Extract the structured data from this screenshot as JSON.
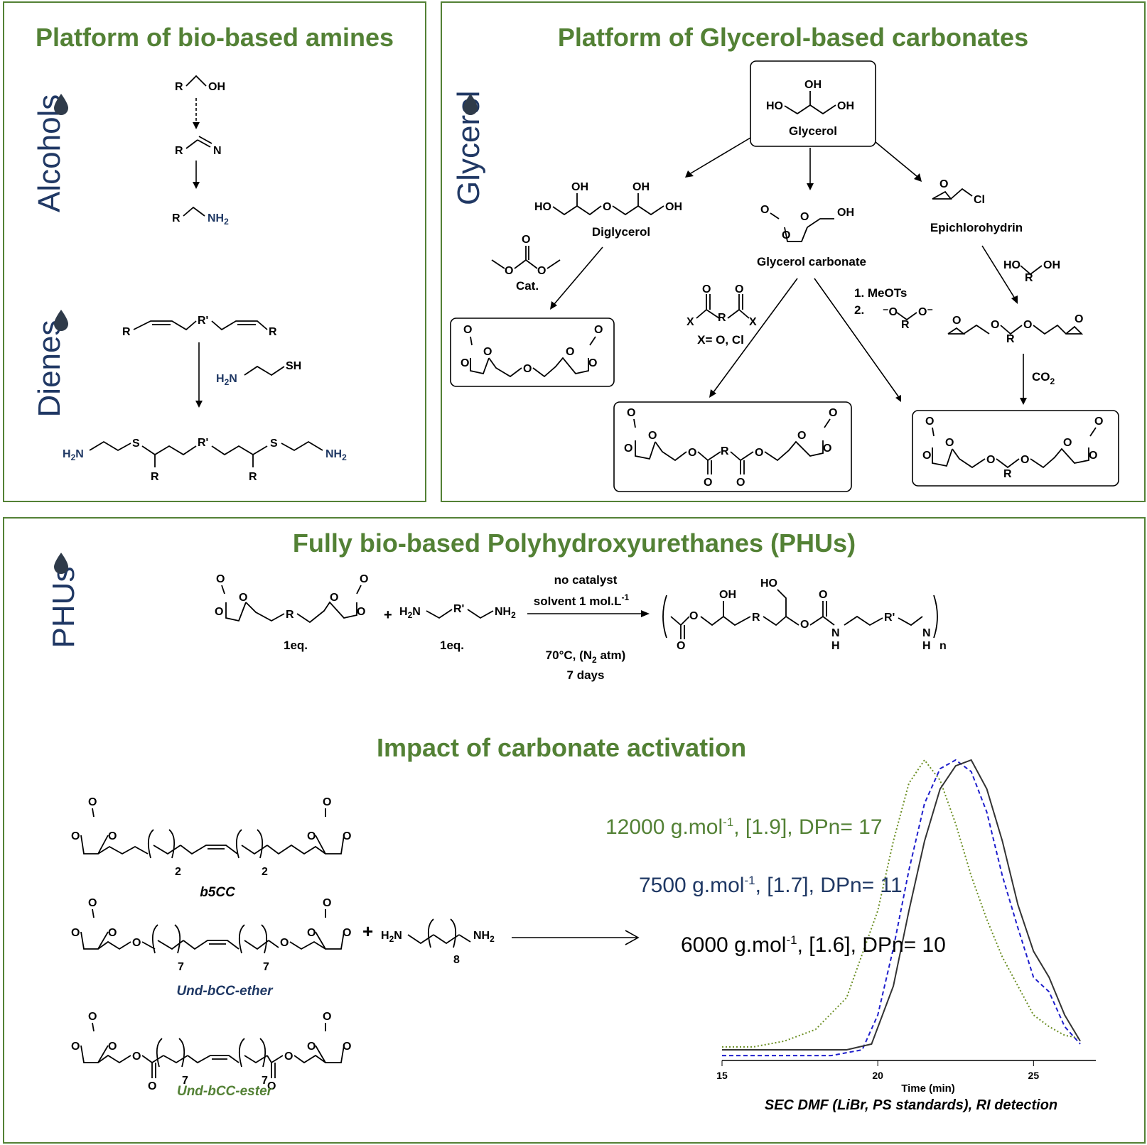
{
  "panels": {
    "amines": {
      "title": "Platform of bio-based amines",
      "side_alcohols": "Alcohols",
      "side_dienes": "Dienes"
    },
    "glycerol": {
      "title": "Platform of Glycerol-based carbonates",
      "side": "Glycerol"
    },
    "phus": {
      "title": "Fully bio-based Polyhydroxyurethanes (PHUs)",
      "side": "PHUs",
      "subtitle": "Impact of carbonate activation"
    }
  },
  "labels": {
    "glycerol": "Glycerol",
    "diglycerol": "Diglycerol",
    "glycerol_carbonate": "Glycerol carbonate",
    "epichlorohydrin": "Epichlorohydrin",
    "cat": "Cat.",
    "x_eq": "X= O, Cl",
    "meots_1": "1. MeOTs",
    "meots_2": "2.",
    "co2": "CO",
    "co2_sub": "2",
    "eq1": "1eq.",
    "eq2": "1eq.",
    "cond_1": "no catalyst",
    "cond_2": "solvent 1 mol.L",
    "cond_2_sup": "-1",
    "cond_3": "70°C, (N",
    "cond_3_sub": "2",
    "cond_3_end": " atm)",
    "cond_4": "7 days",
    "plus": "+",
    "n": "n"
  },
  "compounds": {
    "b5cc": "b5CC",
    "und_ether": "Und-bCC-ether",
    "und_ester": "Und-bCC-ester",
    "diamine_index": "8"
  },
  "results": [
    {
      "value": "12000 g.mol",
      "sup": "-1",
      "rest": ", [1.9], DPn= 17",
      "color": "#538135"
    },
    {
      "value": "7500 g.mol",
      "sup": "-1",
      "rest": ", [1.7], DPn= 11",
      "color": "#1f3864"
    },
    {
      "value": "6000 g.mol",
      "sup": "-1",
      "rest": ", [1.6], DPn= 10",
      "color": "#000000"
    }
  ],
  "chart_data": {
    "type": "line",
    "xlabel": "Time (min)",
    "caption": "SEC DMF (LiBr, PS standards), RI detection",
    "xlim": [
      15,
      27
    ],
    "x_ticks": [
      "15",
      "20",
      "25"
    ],
    "series": [
      {
        "color": "#6b8e23",
        "style": "dotted",
        "x": [
          15,
          16,
          17,
          18,
          19,
          20,
          20.5,
          21,
          21.5,
          22,
          22.5,
          23,
          23.5,
          24,
          24.5,
          25,
          25.5,
          26,
          26.5
        ],
        "y": [
          0.01,
          0.01,
          0.03,
          0.07,
          0.18,
          0.48,
          0.72,
          0.92,
          1.0,
          0.93,
          0.78,
          0.6,
          0.45,
          0.32,
          0.22,
          0.12,
          0.08,
          0.05,
          0.04
        ]
      },
      {
        "color": "#1f1fcc",
        "style": "dashed",
        "x": [
          15,
          17,
          18.5,
          19.5,
          20,
          20.5,
          21,
          21.5,
          22,
          22.5,
          23,
          23.5,
          24,
          24.5,
          25,
          25.5,
          26,
          26.5
        ],
        "y": [
          -0.02,
          -0.02,
          -0.02,
          0.0,
          0.12,
          0.35,
          0.62,
          0.85,
          0.97,
          1.0,
          0.96,
          0.82,
          0.6,
          0.42,
          0.25,
          0.2,
          0.08,
          0.02
        ]
      },
      {
        "color": "#333333",
        "style": "solid",
        "x": [
          15,
          17,
          19,
          19.8,
          20.5,
          21,
          21.5,
          22,
          22.5,
          23,
          23.5,
          24,
          24.5,
          25,
          25.5,
          26,
          26.5
        ],
        "y": [
          0.0,
          0.0,
          0.0,
          0.02,
          0.22,
          0.48,
          0.72,
          0.9,
          0.98,
          1.0,
          0.9,
          0.72,
          0.5,
          0.34,
          0.25,
          0.12,
          0.03
        ]
      }
    ]
  }
}
